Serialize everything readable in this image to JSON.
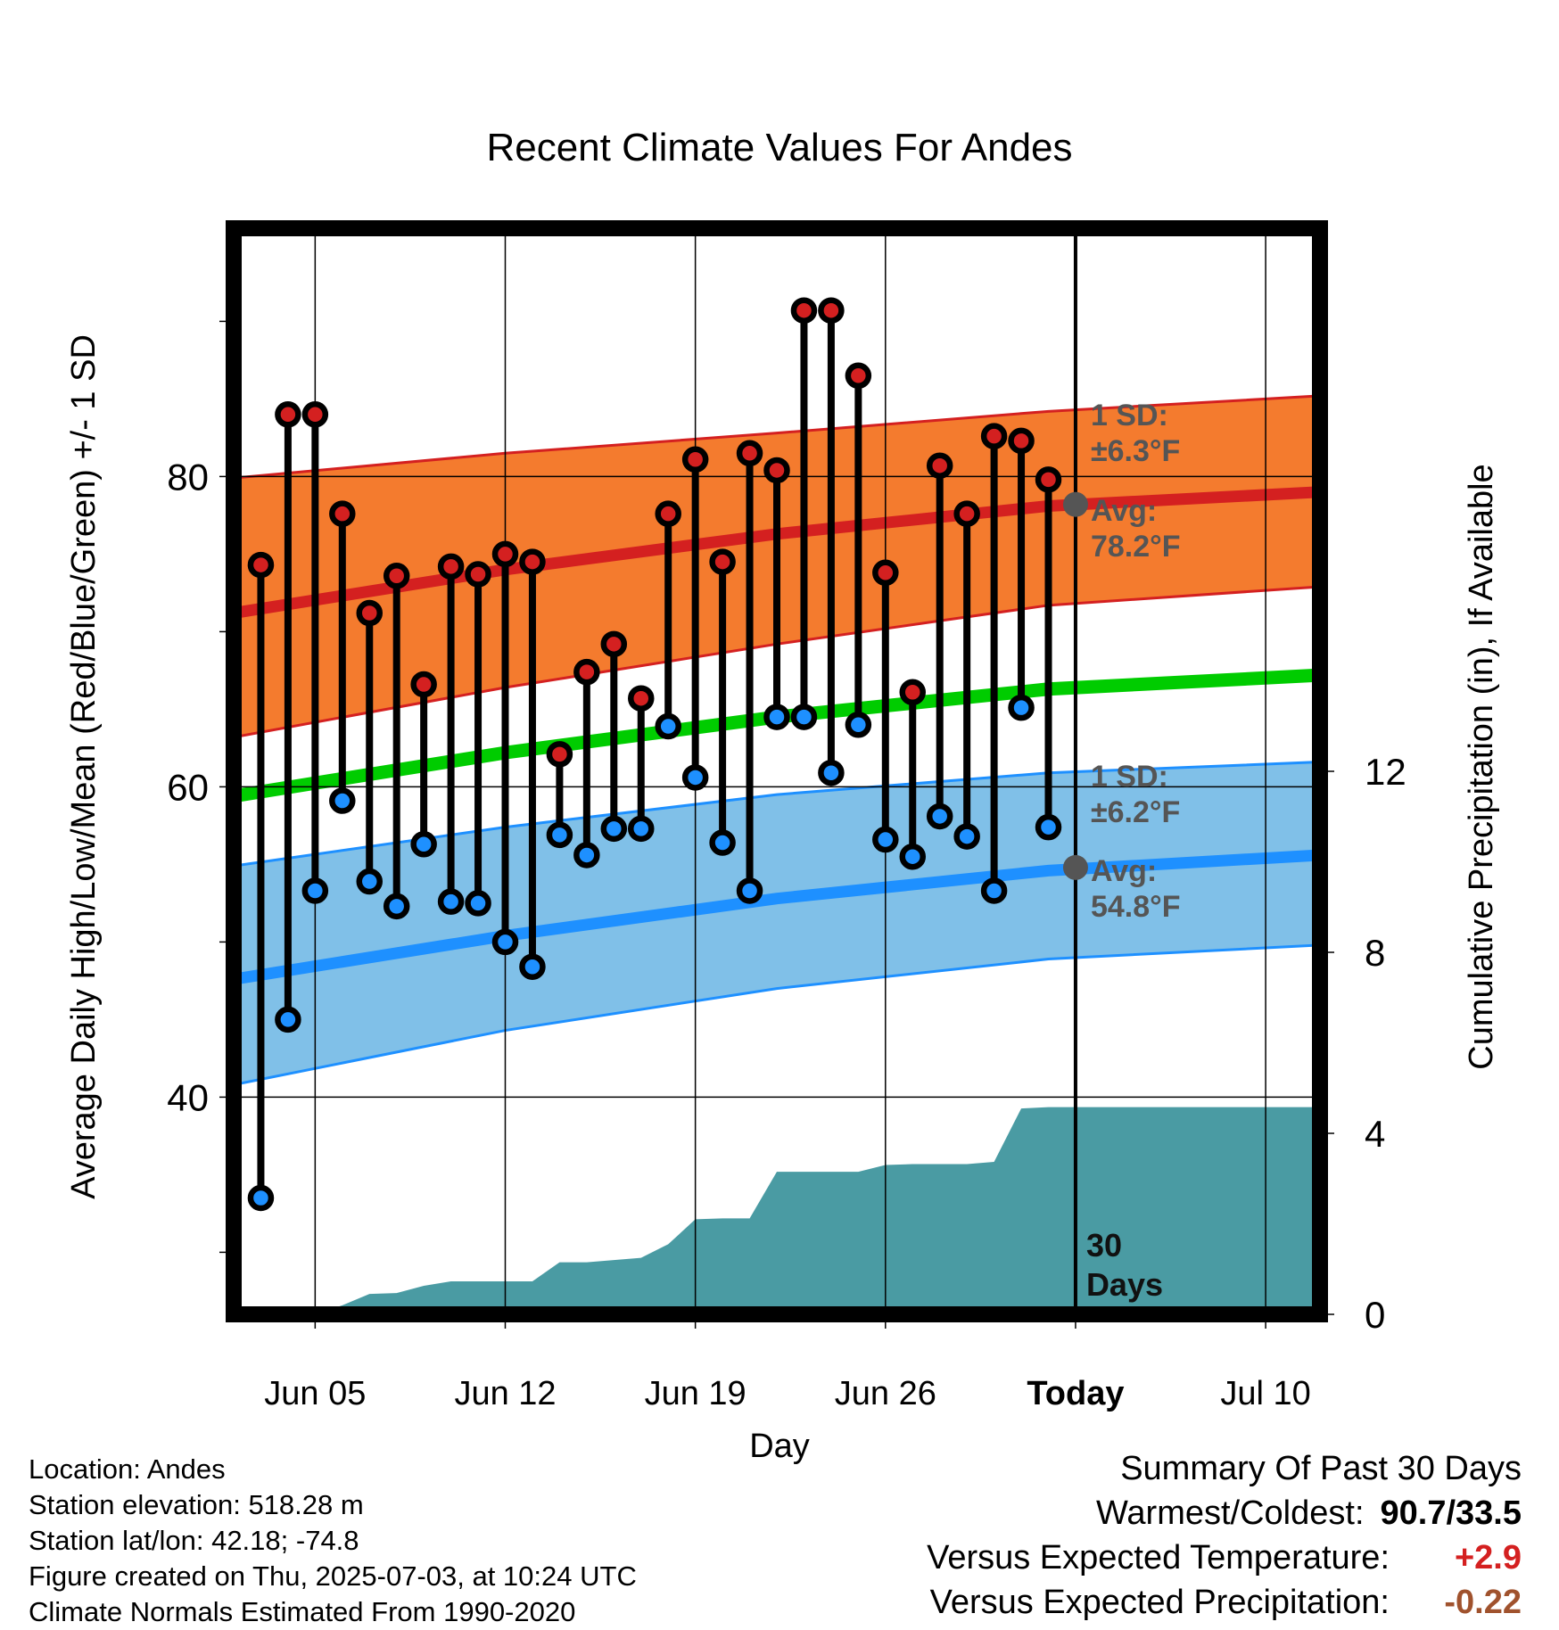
{
  "chart_data": {
    "type": "line",
    "title": "Recent Climate Values For Andes",
    "xlabel": "Day",
    "ylabel": "Average Daily High/Low/Mean (Red/Blue/Green) +/- 1 SD",
    "y2label": "Cumulative Precipitation (in), If Available",
    "x_tick_labels": [
      "Jun 05",
      "Jun 12",
      "Jun 19",
      "Jun 26",
      "Today",
      "Jul 10"
    ],
    "x_tick_dates": [
      "2025-06-05",
      "2025-06-12",
      "2025-06-19",
      "2025-06-26",
      "2025-07-03",
      "2025-07-10"
    ],
    "x_range": [
      "2025-06-02",
      "2025-07-12"
    ],
    "ylim": [
      26,
      96
    ],
    "y_ticks": [
      40,
      60,
      80
    ],
    "y_minor_ticks": [
      30,
      50,
      70,
      90
    ],
    "y2lim": [
      0,
      24
    ],
    "y2_ticks": [
      0,
      4,
      8,
      12
    ],
    "today": "2025-07-03",
    "today_label": "30\nDays",
    "dates": [
      "2025-06-03",
      "2025-06-04",
      "2025-06-05",
      "2025-06-06",
      "2025-06-07",
      "2025-06-08",
      "2025-06-09",
      "2025-06-10",
      "2025-06-11",
      "2025-06-12",
      "2025-06-13",
      "2025-06-14",
      "2025-06-15",
      "2025-06-16",
      "2025-06-17",
      "2025-06-18",
      "2025-06-19",
      "2025-06-20",
      "2025-06-21",
      "2025-06-22",
      "2025-06-23",
      "2025-06-24",
      "2025-06-25",
      "2025-06-26",
      "2025-06-27",
      "2025-06-28",
      "2025-06-29",
      "2025-06-30",
      "2025-07-01",
      "2025-07-02"
    ],
    "series": [
      {
        "name": "Daily High",
        "color": "#d42020",
        "values": [
          74.3,
          84.0,
          84.0,
          77.6,
          71.2,
          73.6,
          66.6,
          74.2,
          73.7,
          75.0,
          74.5,
          62.1,
          67.4,
          69.2,
          65.7,
          77.6,
          81.1,
          74.5,
          81.5,
          80.4,
          90.7,
          90.7,
          86.5,
          73.8,
          66.1,
          80.7,
          77.6,
          82.6,
          82.3,
          79.8
        ]
      },
      {
        "name": "Daily Low",
        "color": "#1e90ff",
        "values": [
          33.5,
          45.0,
          53.3,
          59.1,
          53.9,
          52.3,
          56.3,
          52.6,
          52.5,
          50.0,
          48.4,
          56.9,
          55.6,
          57.3,
          57.3,
          63.9,
          60.6,
          56.4,
          53.3,
          64.5,
          64.5,
          60.9,
          64.0,
          56.6,
          55.5,
          58.1,
          56.8,
          53.3,
          65.1,
          57.4
        ]
      }
    ],
    "normals": {
      "dates": [
        "2025-06-02",
        "2025-06-12",
        "2025-06-22",
        "2025-07-02",
        "2025-07-12"
      ],
      "high_mean": [
        71.2,
        74.0,
        76.3,
        78.1,
        79.0
      ],
      "high_upper": [
        79.9,
        81.5,
        82.8,
        84.2,
        85.2
      ],
      "high_lower": [
        63.2,
        66.4,
        69.2,
        71.7,
        72.9
      ],
      "mean": [
        59.4,
        62.2,
        64.5,
        66.3,
        67.2
      ],
      "low_mean": [
        47.6,
        50.4,
        52.8,
        54.6,
        55.6
      ],
      "low_upper": [
        54.9,
        57.4,
        59.5,
        60.9,
        61.6
      ],
      "low_lower": [
        40.8,
        44.3,
        47.0,
        48.9,
        49.8
      ]
    },
    "today_normals": {
      "high_avg": 78.2,
      "low_avg": 54.8,
      "high_sd_label": "1 SD:\n±6.3°F",
      "high_avg_label": "Avg:\n78.2°F",
      "low_sd_label": "1 SD:\n±6.2°F",
      "low_avg_label": "Avg:\n54.8°F"
    },
    "precip_cumulative": {
      "dates": [
        "2025-06-02",
        "2025-06-05",
        "2025-06-06",
        "2025-06-07",
        "2025-06-08",
        "2025-06-09",
        "2025-06-10",
        "2025-06-11",
        "2025-06-12",
        "2025-06-13",
        "2025-06-14",
        "2025-06-15",
        "2025-06-16",
        "2025-06-17",
        "2025-06-18",
        "2025-06-19",
        "2025-06-20",
        "2025-06-21",
        "2025-06-22",
        "2025-06-23",
        "2025-06-24",
        "2025-06-25",
        "2025-06-26",
        "2025-06-27",
        "2025-06-28",
        "2025-06-29",
        "2025-06-30",
        "2025-07-01",
        "2025-07-02",
        "2025-07-12"
      ],
      "values": [
        0.0,
        0.0,
        0.2,
        0.45,
        0.47,
        0.63,
        0.73,
        0.73,
        0.73,
        0.73,
        1.15,
        1.15,
        1.2,
        1.25,
        1.55,
        2.1,
        2.12,
        2.12,
        3.15,
        3.15,
        3.15,
        3.15,
        3.3,
        3.32,
        3.32,
        3.32,
        3.37,
        4.55,
        4.58,
        4.58
      ]
    },
    "colors": {
      "high_band": "#f47b2e",
      "high_line": "#d42020",
      "low_band": "#80c0e8",
      "low_line": "#1e90ff",
      "mean_line": "#00cc00",
      "precip": "#4a9ba3",
      "sd_label": "#555555"
    },
    "grid": true,
    "legend": "none"
  },
  "info": {
    "location": "Location: Andes",
    "elevation": "Station elevation: 518.28 m",
    "latlon": "Station lat/lon: 42.18; -74.8",
    "created": "Figure created on Thu, 2025-07-03, at 10:24 UTC",
    "normals": "Climate Normals Estimated From 1990-2020"
  },
  "summary": {
    "title": "Summary Of Past 30 Days",
    "warmest_label": "Warmest/Coldest:",
    "warmest_value": "90.7/33.5",
    "temp_label": "Versus Expected Temperature:",
    "temp_value": "+2.9",
    "temp_color": "#d42020",
    "precip_label": "Versus Expected Precipitation:",
    "precip_value": "-0.22",
    "precip_color": "#a0522d"
  }
}
